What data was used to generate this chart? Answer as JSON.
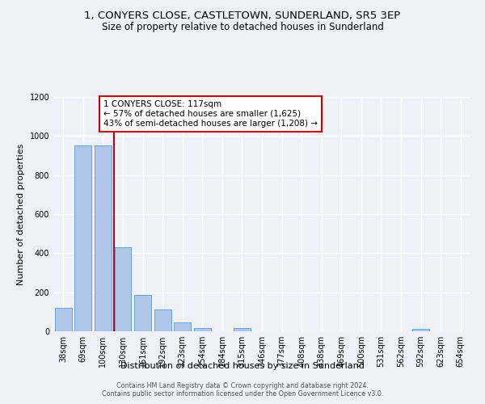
{
  "title": "1, CONYERS CLOSE, CASTLETOWN, SUNDERLAND, SR5 3EP",
  "subtitle": "Size of property relative to detached houses in Sunderland",
  "xlabel": "Distribution of detached houses by size in Sunderland",
  "ylabel": "Number of detached properties",
  "bar_labels": [
    "38sqm",
    "69sqm",
    "100sqm",
    "130sqm",
    "161sqm",
    "192sqm",
    "223sqm",
    "254sqm",
    "284sqm",
    "315sqm",
    "346sqm",
    "377sqm",
    "408sqm",
    "438sqm",
    "469sqm",
    "500sqm",
    "531sqm",
    "562sqm",
    "592sqm",
    "623sqm",
    "654sqm"
  ],
  "bar_values": [
    120,
    950,
    950,
    430,
    185,
    110,
    45,
    18,
    0,
    15,
    0,
    0,
    0,
    0,
    0,
    0,
    0,
    0,
    12,
    0,
    0
  ],
  "bar_color": "#aec6e8",
  "bar_edge_color": "#5b9bd5",
  "ylim": [
    0,
    1200
  ],
  "yticks": [
    0,
    200,
    400,
    600,
    800,
    1000,
    1200
  ],
  "annotation_title": "1 CONYERS CLOSE: 117sqm",
  "annotation_line1": "← 57% of detached houses are smaller (1,625)",
  "annotation_line2": "43% of semi-detached houses are larger (1,208) →",
  "annotation_box_color": "#ffffff",
  "annotation_box_edge": "#cc0000",
  "ref_line_color": "#cc0000",
  "footer_line1": "Contains HM Land Registry data © Crown copyright and database right 2024.",
  "footer_line2": "Contains public sector information licensed under the Open Government Licence v3.0.",
  "background_color": "#eef2f8",
  "grid_color": "#ffffff",
  "title_fontsize": 9.5,
  "subtitle_fontsize": 8.5,
  "axis_label_fontsize": 8,
  "tick_fontsize": 7,
  "annotation_fontsize": 7.5,
  "footer_fontsize": 5.8
}
